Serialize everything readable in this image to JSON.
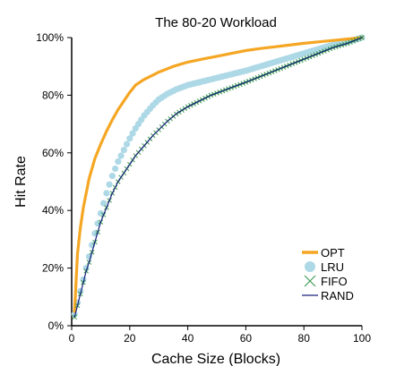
{
  "chart_data": {
    "type": "line",
    "title": "The 80-20 Workload",
    "xlabel": "Cache Size (Blocks)",
    "ylabel": "Hit Rate",
    "xlim": [
      0,
      100
    ],
    "ylim": [
      0,
      100
    ],
    "x_ticks": [
      0,
      20,
      40,
      60,
      80,
      100
    ],
    "y_ticks": [
      0,
      20,
      40,
      60,
      80,
      100
    ],
    "x_tick_labels": [
      "0",
      "20",
      "40",
      "60",
      "80",
      "100"
    ],
    "y_tick_labels": [
      "0%",
      "20%",
      "40%",
      "60%",
      "80%",
      "100%"
    ],
    "grid": false,
    "legend_position": "bottom-right",
    "series": [
      {
        "name": "OPT",
        "style": "line",
        "color": "#f5a623",
        "x": [
          1,
          2,
          3,
          4,
          5,
          6,
          8,
          10,
          12,
          14,
          16,
          18,
          20,
          22,
          25,
          28,
          30,
          35,
          40,
          45,
          50,
          55,
          60,
          65,
          70,
          75,
          80,
          85,
          90,
          95,
          100
        ],
        "y": [
          5,
          25,
          34,
          41,
          46,
          51,
          58,
          63,
          67.5,
          71.5,
          75,
          78,
          81,
          83.5,
          85.5,
          87,
          88,
          90,
          91.5,
          92.5,
          93.5,
          94.5,
          95.5,
          96.2,
          96.8,
          97.4,
          98,
          98.5,
          99,
          99.5,
          100
        ]
      },
      {
        "name": "LRU",
        "style": "dots",
        "color": "#add8e6",
        "x": [
          1,
          2,
          3,
          4,
          5,
          6,
          8,
          10,
          12,
          14,
          16,
          18,
          20,
          22,
          25,
          28,
          30,
          33,
          36,
          40,
          44,
          48,
          52,
          56,
          60,
          65,
          70,
          75,
          80,
          85,
          90,
          95,
          100
        ],
        "y": [
          4,
          8,
          12,
          16,
          20,
          24,
          32,
          39,
          46,
          52,
          57,
          61,
          65,
          68.5,
          73,
          76.5,
          78.5,
          80.5,
          82,
          83.5,
          84.5,
          85.5,
          86.5,
          87.5,
          88.5,
          90,
          91.5,
          93,
          94.5,
          96,
          97.5,
          98.5,
          100
        ]
      },
      {
        "name": "FIFO",
        "style": "crosses",
        "color": "#3a9a4f",
        "x": [
          1,
          2,
          3,
          4,
          5,
          6,
          8,
          10,
          12,
          14,
          16,
          18,
          20,
          22,
          25,
          28,
          30,
          33,
          36,
          40,
          44,
          48,
          52,
          56,
          60,
          65,
          70,
          75,
          80,
          85,
          90,
          95,
          100
        ],
        "y": [
          3,
          7,
          11,
          15,
          19,
          22,
          29,
          36,
          41,
          46,
          50,
          53,
          56,
          59,
          62.5,
          66,
          68,
          71,
          73.5,
          76,
          78,
          80,
          81.5,
          83,
          84.5,
          86.5,
          88.5,
          90.5,
          92.5,
          94.5,
          96.5,
          98,
          100
        ]
      },
      {
        "name": "RAND",
        "style": "thinline",
        "color": "#1a237e",
        "x": [
          1,
          2,
          3,
          4,
          5,
          6,
          8,
          10,
          12,
          14,
          16,
          18,
          20,
          22,
          25,
          28,
          30,
          33,
          36,
          40,
          44,
          48,
          52,
          56,
          60,
          65,
          70,
          75,
          80,
          85,
          90,
          95,
          100
        ],
        "y": [
          3,
          7,
          11,
          15,
          19,
          22,
          29,
          36,
          41,
          46,
          50,
          53,
          56,
          59,
          62.5,
          66,
          68,
          71,
          73.5,
          76,
          78,
          80,
          81.5,
          83,
          84.5,
          86.5,
          88.5,
          90.5,
          92.5,
          94.5,
          96.5,
          98,
          100
        ]
      }
    ]
  }
}
